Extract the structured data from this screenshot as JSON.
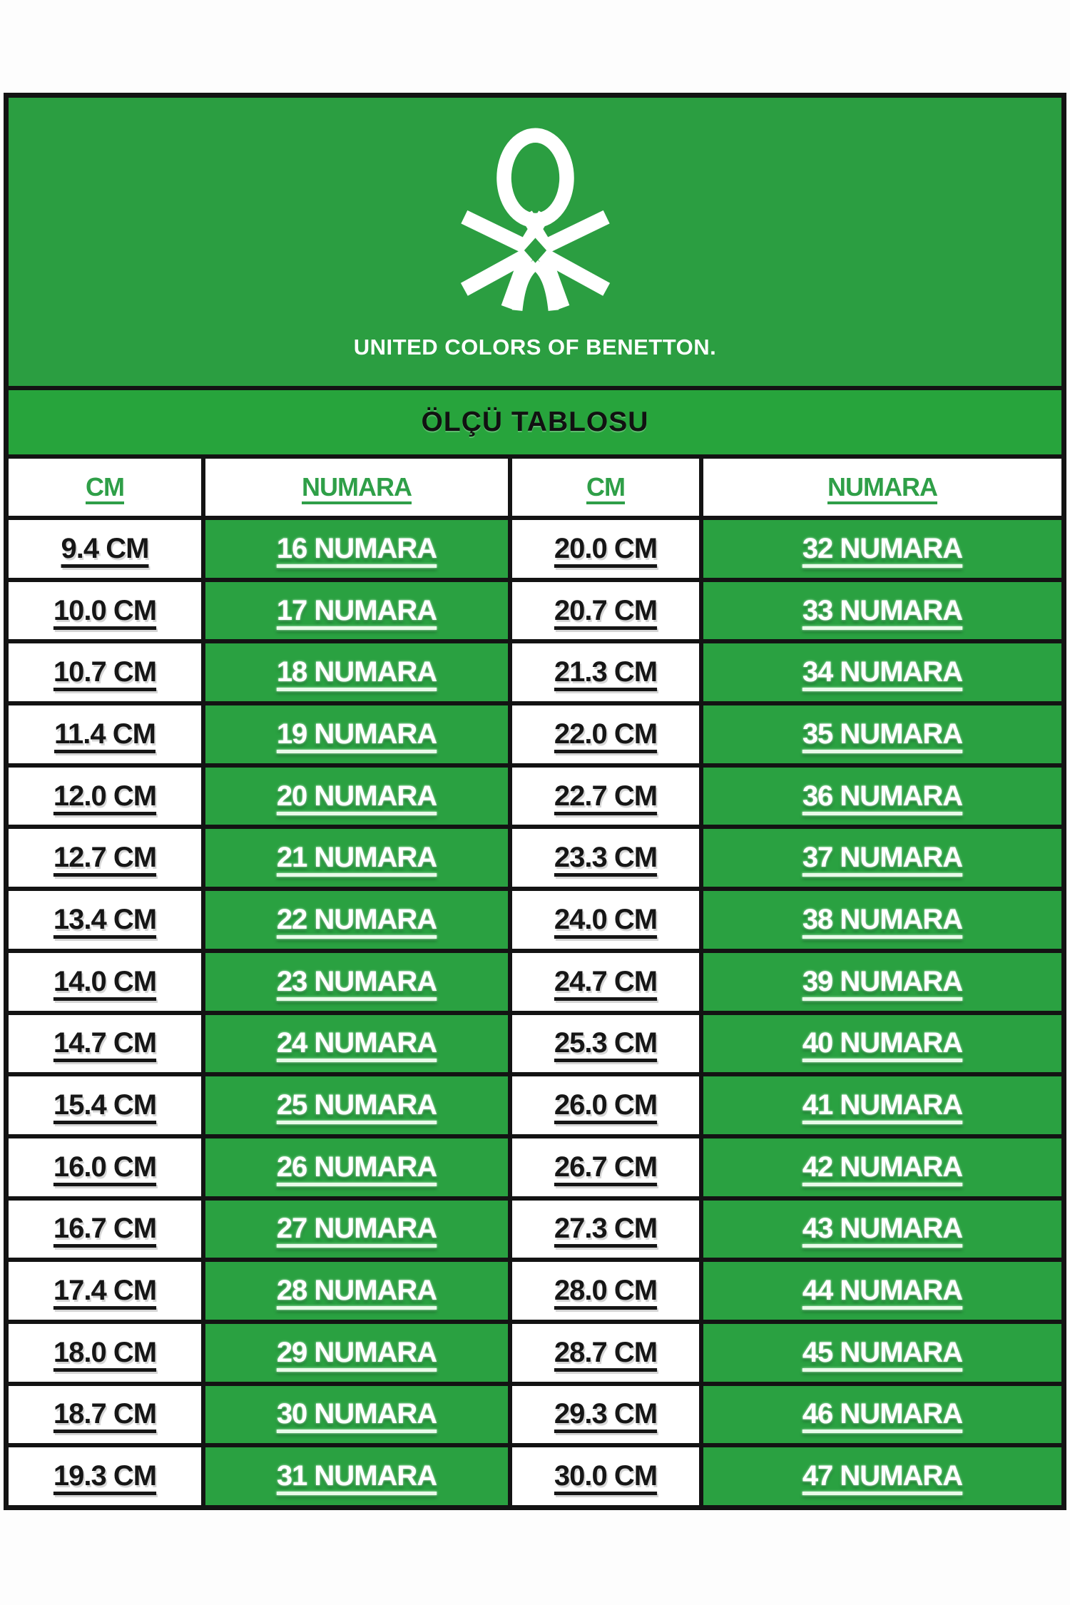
{
  "brand": {
    "wordmark": "UNITED COLORS OF BENETTON.",
    "logo": "benetton-knot-icon"
  },
  "title_bar": {
    "title": "ÖLÇÜ TABLOSU"
  },
  "chart_data": {
    "type": "table",
    "title": "ÖLÇÜ TABLOSU",
    "columns": [
      "CM",
      "NUMARA",
      "CM",
      "NUMARA"
    ],
    "rows": [
      [
        "9.4 CM",
        "16 NUMARA",
        "20.0 CM",
        "32 NUMARA"
      ],
      [
        "10.0 CM",
        "17 NUMARA",
        "20.7 CM",
        "33 NUMARA"
      ],
      [
        "10.7 CM",
        "18 NUMARA",
        "21.3 CM",
        "34 NUMARA"
      ],
      [
        "11.4 CM",
        "19 NUMARA",
        "22.0 CM",
        "35 NUMARA"
      ],
      [
        "12.0 CM",
        "20 NUMARA",
        "22.7 CM",
        "36 NUMARA"
      ],
      [
        "12.7 CM",
        "21 NUMARA",
        "23.3 CM",
        "37 NUMARA"
      ],
      [
        "13.4 CM",
        "22 NUMARA",
        "24.0 CM",
        "38 NUMARA"
      ],
      [
        "14.0 CM",
        "23 NUMARA",
        "24.7 CM",
        "39 NUMARA"
      ],
      [
        "14.7 CM",
        "24 NUMARA",
        "25.3 CM",
        "40 NUMARA"
      ],
      [
        "15.4 CM",
        "25 NUMARA",
        "26.0 CM",
        "41 NUMARA"
      ],
      [
        "16.0 CM",
        "26 NUMARA",
        "26.7 CM",
        "42 NUMARA"
      ],
      [
        "16.7 CM",
        "27 NUMARA",
        "27.3 CM",
        "43 NUMARA"
      ],
      [
        "17.4 CM",
        "28 NUMARA",
        "28.0 CM",
        "44 NUMARA"
      ],
      [
        "18.0 CM",
        "29 NUMARA",
        "28.7 CM",
        "45 NUMARA"
      ],
      [
        "18.7 CM",
        "30 NUMARA",
        "29.3 CM",
        "46 NUMARA"
      ],
      [
        "19.3 CM",
        "31 NUMARA",
        "30.0 CM",
        "47 NUMARA"
      ]
    ]
  },
  "colors": {
    "header_block_green": "#2b9e41",
    "title_bar_green": "#27a43c",
    "cell_green": "#2aa141",
    "header_text_green": "#2f9f48",
    "border_black": "#131313",
    "cm_text": "#161616",
    "numara_text": "#ffffff"
  }
}
